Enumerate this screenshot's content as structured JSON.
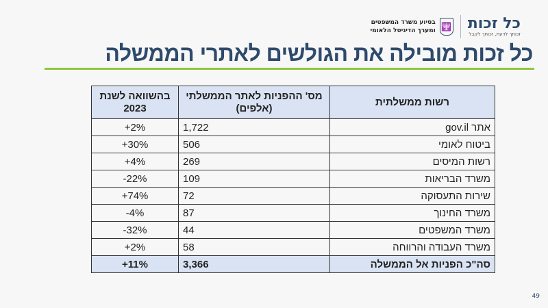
{
  "header": {
    "logo_name": "כל זכות",
    "logo_tagline": "זכותך לדעת, זכותך לקבל",
    "ministry_line1": "בסיוע משרד המשפטים",
    "ministry_line2": "ומערך הדיגיטל הלאומי",
    "emblem_icon": "menorah-emblem-icon"
  },
  "title": "כל זכות מובילה את הגולשים לאתרי הממשלה",
  "table": {
    "columns": [
      "רשות ממשלתית",
      "מס' ההפניות לאתר הממשלתי (אלפים)",
      "בהשוואה לשנת 2023"
    ],
    "rows": [
      {
        "authority": "אתר gov.il",
        "referrals": "1,722",
        "change": "+2%"
      },
      {
        "authority": "ביטוח לאומי",
        "referrals": "506",
        "change": "+30%"
      },
      {
        "authority": "רשות המיסים",
        "referrals": "269",
        "change": "+4%"
      },
      {
        "authority": "משרד הבריאות",
        "referrals": "109",
        "change": "-22%"
      },
      {
        "authority": "שירות התעסוקה",
        "referrals": "72",
        "change": "+74%"
      },
      {
        "authority": "משרד החינוך",
        "referrals": "87",
        "change": "-4%"
      },
      {
        "authority": "משרד המשפטים",
        "referrals": "44",
        "change": "-32%"
      },
      {
        "authority": "משרד העבודה והרווחה",
        "referrals": "58",
        "change": "+2%"
      }
    ],
    "total": {
      "authority": "סה\"כ הפניות אל הממשלה",
      "referrals": "3,366",
      "change": "+11%"
    }
  },
  "page_number": "49",
  "colors": {
    "title": "#2e4a6b",
    "accent_line": "#8dc63f",
    "header_fill": "#dae3f3"
  }
}
